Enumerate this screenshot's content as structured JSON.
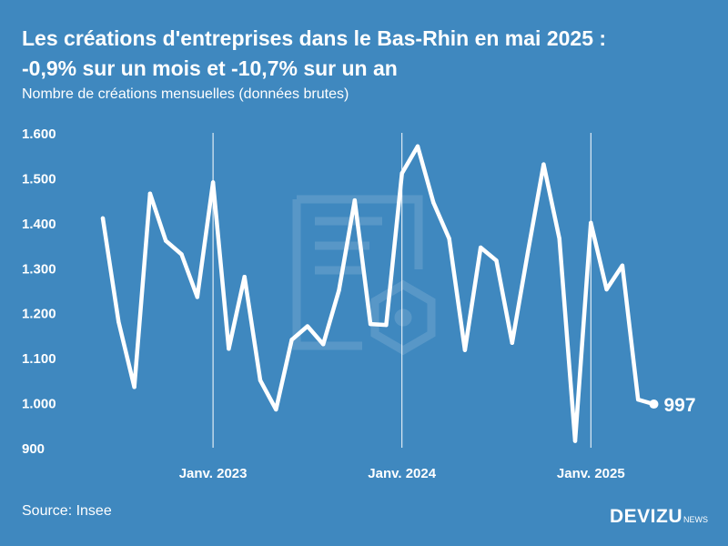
{
  "title_line1": "Les créations d'entreprises dans le Bas-Rhin en mai 2025 :",
  "title_line2": "-0,9% sur un mois et -10,7% sur un an",
  "subtitle": "Nombre de créations mensuelles (données brutes)",
  "source": "Source: Insee",
  "brand": {
    "main": "DEVIZU",
    "sub": "NEWS"
  },
  "colors": {
    "background": "#3f88bf",
    "line": "#ffffff",
    "text": "#ffffff"
  },
  "chart_data": {
    "type": "line",
    "title": "Les créations d'entreprises dans le Bas-Rhin en mai 2025 : -0,9% sur un mois et -10,7% sur un an",
    "ylabel": "Nombre de créations mensuelles (données brutes)",
    "xlabel": "",
    "ylim": [
      900,
      1600
    ],
    "y_ticks": [
      900,
      1000,
      1100,
      1200,
      1300,
      1400,
      1500,
      1600
    ],
    "y_tick_labels": [
      "900",
      "1.000",
      "1.100",
      "1.200",
      "1.300",
      "1.400",
      "1.500",
      "1.600"
    ],
    "x_ticks": [
      {
        "month": "2023-01",
        "label": "Janv. 2023"
      },
      {
        "month": "2024-01",
        "label": "Janv. 2024"
      },
      {
        "month": "2025-01",
        "label": "Janv. 2025"
      }
    ],
    "grid": "vertical lines at January ticks",
    "legend": "none",
    "series": [
      {
        "x": [
          "2022-06",
          "2022-07",
          "2022-08",
          "2022-09",
          "2022-10",
          "2022-11",
          "2022-12",
          "2023-01",
          "2023-02",
          "2023-03",
          "2023-04",
          "2023-05",
          "2023-06",
          "2023-07",
          "2023-08",
          "2023-09",
          "2023-10",
          "2023-11",
          "2023-12",
          "2024-01",
          "2024-02",
          "2024-03",
          "2024-04",
          "2024-05",
          "2024-06",
          "2024-07",
          "2024-08",
          "2024-09",
          "2024-10",
          "2024-11",
          "2024-12",
          "2025-01",
          "2025-02",
          "2025-03",
          "2025-04",
          "2025-05"
        ],
        "values": [
          1410,
          1180,
          1035,
          1465,
          1360,
          1330,
          1235,
          1490,
          1120,
          1280,
          1050,
          985,
          1140,
          1170,
          1130,
          1250,
          1450,
          1175,
          1173,
          1510,
          1570,
          1445,
          1365,
          1117,
          1345,
          1316,
          1133,
          1335,
          1530,
          1365,
          915,
          1400,
          1252,
          1305,
          1007,
          997
        ]
      }
    ],
    "annotation": {
      "month": "2025-05",
      "value": 997,
      "label": "997"
    }
  }
}
